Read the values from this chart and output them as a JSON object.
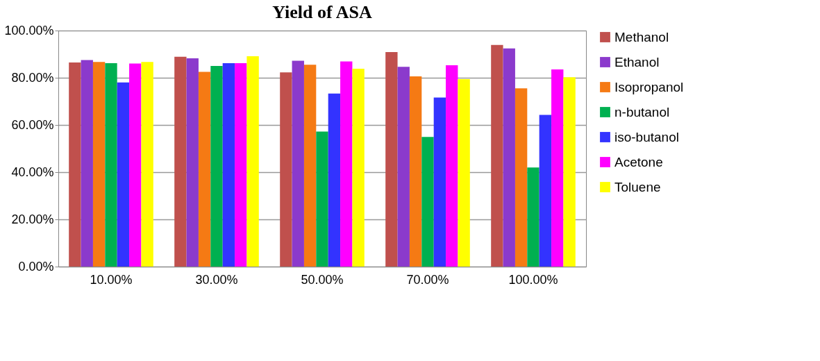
{
  "chart_data": {
    "type": "bar",
    "title": "Yield of ASA",
    "categories": [
      "10.00%",
      "30.00%",
      "50.00%",
      "70.00%",
      "100.00%"
    ],
    "series": [
      {
        "name": "Methanol",
        "color": "#c0504d",
        "values": [
          86.5,
          88.9,
          82.3,
          90.9,
          93.9
        ]
      },
      {
        "name": "Ethanol",
        "color": "#8b3acc",
        "values": [
          87.5,
          88.2,
          87.2,
          84.6,
          92.4
        ]
      },
      {
        "name": "Isopropanol",
        "color": "#f57a14",
        "values": [
          86.7,
          82.5,
          85.5,
          80.6,
          75.5
        ]
      },
      {
        "name": "n-butanol",
        "color": "#00b050",
        "values": [
          86.2,
          85.0,
          57.2,
          54.9,
          42.0
        ]
      },
      {
        "name": "iso-butanol",
        "color": "#3333ff",
        "values": [
          78.0,
          86.2,
          73.3,
          71.6,
          64.3
        ]
      },
      {
        "name": "Acetone",
        "color": "#ff00ff",
        "values": [
          86.0,
          86.2,
          86.9,
          85.3,
          83.5
        ]
      },
      {
        "name": "Toluene",
        "color": "#ffff00",
        "values": [
          86.7,
          89.1,
          83.8,
          79.4,
          80.2
        ]
      }
    ],
    "ylim": [
      0,
      100
    ],
    "yticks": [
      {
        "value": 0,
        "label": "0.00%"
      },
      {
        "value": 20,
        "label": "20.00%"
      },
      {
        "value": 40,
        "label": "40.00%"
      },
      {
        "value": 60,
        "label": "60.00%"
      },
      {
        "value": 80,
        "label": "80.00%"
      },
      {
        "value": 100,
        "label": "100.00%"
      }
    ],
    "grid": "y",
    "legend": "right"
  }
}
